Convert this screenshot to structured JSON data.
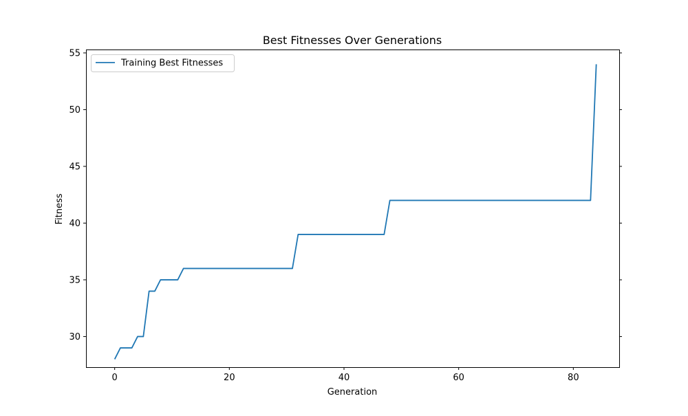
{
  "chart_data": {
    "type": "line",
    "title": "Best Fitnesses Over Generations",
    "xlabel": "Generation",
    "ylabel": "Fitness",
    "xlim": [
      -5,
      88
    ],
    "ylim": [
      27.3,
      55.3
    ],
    "xticks": [
      0,
      20,
      40,
      60,
      80
    ],
    "yticks": [
      30,
      35,
      40,
      45,
      50,
      55
    ],
    "grid": false,
    "legend_position": "upper left",
    "series": [
      {
        "name": "Training Best Fitnesses",
        "color": "#1f77b4",
        "x": [
          0,
          1,
          2,
          3,
          4,
          5,
          6,
          7,
          8,
          9,
          10,
          11,
          12,
          13,
          14,
          15,
          16,
          17,
          18,
          19,
          20,
          21,
          22,
          23,
          24,
          25,
          26,
          27,
          28,
          29,
          30,
          31,
          32,
          33,
          34,
          35,
          36,
          37,
          38,
          39,
          40,
          41,
          42,
          43,
          44,
          45,
          46,
          47,
          48,
          49,
          50,
          51,
          52,
          53,
          54,
          55,
          56,
          57,
          58,
          59,
          60,
          61,
          62,
          63,
          64,
          65,
          66,
          67,
          68,
          69,
          70,
          71,
          72,
          73,
          74,
          75,
          76,
          77,
          78,
          79,
          80,
          81,
          82,
          83,
          84
        ],
        "y": [
          28,
          29,
          29,
          29,
          30,
          30,
          34,
          34,
          35,
          35,
          35,
          35,
          36,
          36,
          36,
          36,
          36,
          36,
          36,
          36,
          36,
          36,
          36,
          36,
          36,
          36,
          36,
          36,
          36,
          36,
          36,
          36,
          39,
          39,
          39,
          39,
          39,
          39,
          39,
          39,
          39,
          39,
          39,
          39,
          39,
          39,
          39,
          39,
          42,
          42,
          42,
          42,
          42,
          42,
          42,
          42,
          42,
          42,
          42,
          42,
          42,
          42,
          42,
          42,
          42,
          42,
          42,
          42,
          42,
          42,
          42,
          42,
          42,
          42,
          42,
          42,
          42,
          42,
          42,
          42,
          42,
          42,
          42,
          42,
          54
        ]
      }
    ]
  }
}
